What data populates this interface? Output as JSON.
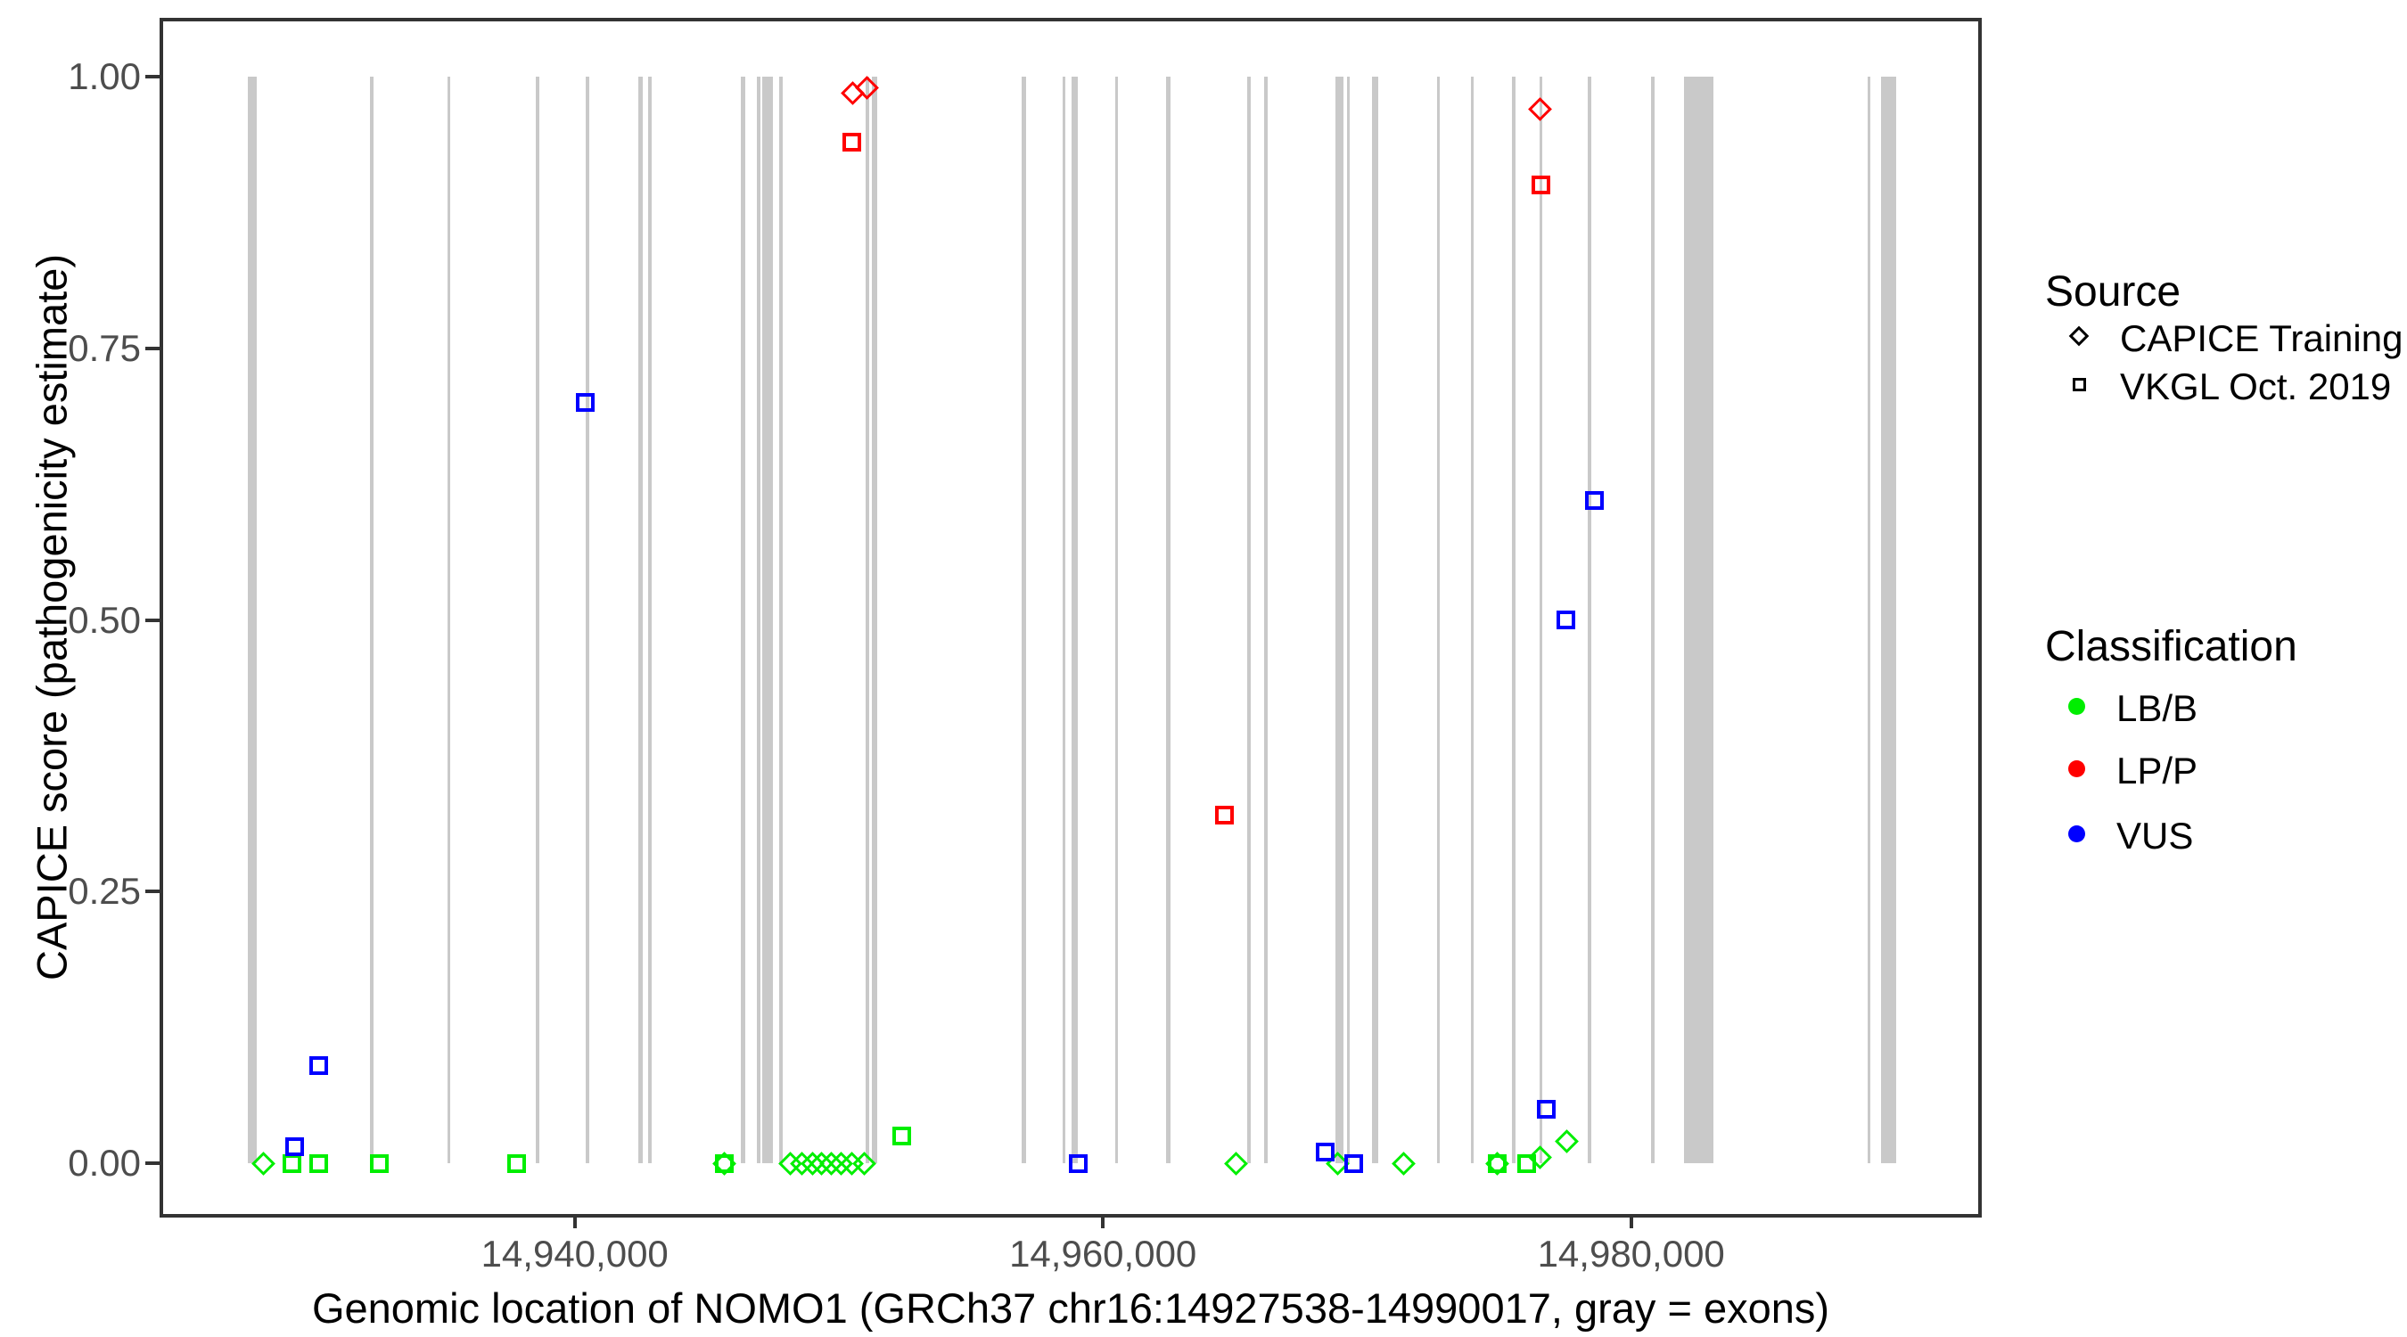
{
  "chart_data": {
    "type": "scatter",
    "xlabel": "Genomic location of NOMO1 (GRCh37 chr16:14927538-14990017, gray = exons)",
    "ylabel": "CAPICE score (pathogenicity estimate)",
    "xlim": [
      14924414,
      14993141
    ],
    "ylim": [
      0,
      1
    ],
    "grid": "off",
    "legend_position": "right",
    "x_ticks": [
      {
        "value": 14940000,
        "label": "14,940,000"
      },
      {
        "value": 14960000,
        "label": "14,960,000"
      },
      {
        "value": 14980000,
        "label": "14,980,000"
      }
    ],
    "y_ticks": [
      {
        "value": 0.0,
        "label": "0.00"
      },
      {
        "value": 0.25,
        "label": "0.25"
      },
      {
        "value": 0.5,
        "label": "0.50"
      },
      {
        "value": 0.75,
        "label": "0.75"
      },
      {
        "value": 1.0,
        "label": "1.00"
      }
    ],
    "exon_color": "#c9c9c9",
    "exons_note": "gray vertical bars = exons of NOMO1, drawn from score 0 to 1",
    "exons": [
      [
        14927620,
        14927960
      ],
      [
        14932250,
        14932380
      ],
      [
        14935180,
        14935260
      ],
      [
        14938525,
        14938660
      ],
      [
        14940415,
        14940550
      ],
      [
        14942405,
        14942575
      ],
      [
        14942780,
        14942915
      ],
      [
        14946290,
        14946460
      ],
      [
        14946895,
        14947030
      ],
      [
        14947100,
        14947505
      ],
      [
        14947740,
        14947860
      ],
      [
        14951015,
        14951150
      ],
      [
        14951250,
        14951455
      ],
      [
        14956920,
        14957090
      ],
      [
        14958475,
        14958575
      ],
      [
        14958810,
        14959045
      ],
      [
        14960465,
        14960565
      ],
      [
        14962390,
        14962560
      ],
      [
        14965460,
        14965595
      ],
      [
        14966100,
        14966235
      ],
      [
        14968805,
        14969110
      ],
      [
        14969245,
        14969345
      ],
      [
        14970195,
        14970430
      ],
      [
        14972655,
        14972755
      ],
      [
        14973935,
        14974035
      ],
      [
        14975490,
        14975625
      ],
      [
        14976530,
        14976650
      ],
      [
        14978355,
        14978490
      ],
      [
        14980755,
        14980890
      ],
      [
        14981990,
        14983105
      ],
      [
        14988950,
        14989050
      ],
      [
        14989460,
        14990017
      ]
    ],
    "classification_colors": {
      "LB/B": "#00ee00",
      "LP/P": "#ff0000",
      "VUS": "#0000ff"
    },
    "source_shapes": {
      "CAPICE Training": "diamond",
      "VKGL Oct. 2019": "square"
    },
    "points": [
      {
        "source": "CAPICE Training",
        "classification": "LB/B",
        "x": 14928200,
        "y": 0.0
      },
      {
        "source": "CAPICE Training",
        "classification": "LB/B",
        "x": 14945670,
        "y": 0.0
      },
      {
        "source": "CAPICE Training",
        "classification": "LB/B",
        "x": 14948150,
        "y": 0.0
      },
      {
        "source": "CAPICE Training",
        "classification": "LB/B",
        "x": 14948600,
        "y": 0.0
      },
      {
        "source": "CAPICE Training",
        "classification": "LB/B",
        "x": 14949000,
        "y": 0.0
      },
      {
        "source": "CAPICE Training",
        "classification": "LB/B",
        "x": 14949350,
        "y": 0.0
      },
      {
        "source": "CAPICE Training",
        "classification": "LB/B",
        "x": 14949700,
        "y": 0.0
      },
      {
        "source": "CAPICE Training",
        "classification": "LB/B",
        "x": 14950100,
        "y": 0.0
      },
      {
        "source": "CAPICE Training",
        "classification": "LB/B",
        "x": 14950500,
        "y": 0.0
      },
      {
        "source": "CAPICE Training",
        "classification": "LB/B",
        "x": 14950950,
        "y": 0.0
      },
      {
        "source": "CAPICE Training",
        "classification": "LP/P",
        "x": 14950520,
        "y": 0.985
      },
      {
        "source": "CAPICE Training",
        "classification": "LP/P",
        "x": 14951060,
        "y": 0.99
      },
      {
        "source": "CAPICE Training",
        "classification": "LB/B",
        "x": 14965040,
        "y": 0.0
      },
      {
        "source": "CAPICE Training",
        "classification": "LB/B",
        "x": 14968870,
        "y": 0.0
      },
      {
        "source": "CAPICE Training",
        "classification": "LB/B",
        "x": 14971370,
        "y": 0.0
      },
      {
        "source": "CAPICE Training",
        "classification": "LB/B",
        "x": 14974930,
        "y": 0.0
      },
      {
        "source": "CAPICE Training",
        "classification": "LP/P",
        "x": 14976550,
        "y": 0.97
      },
      {
        "source": "CAPICE Training",
        "classification": "LB/B",
        "x": 14976560,
        "y": 0.005
      },
      {
        "source": "CAPICE Training",
        "classification": "LB/B",
        "x": 14977560,
        "y": 0.02
      },
      {
        "source": "VKGL Oct. 2019",
        "classification": "LB/B",
        "x": 14929300,
        "y": 0.0
      },
      {
        "source": "VKGL Oct. 2019",
        "classification": "VUS",
        "x": 14929400,
        "y": 0.015
      },
      {
        "source": "VKGL Oct. 2019",
        "classification": "LB/B",
        "x": 14930300,
        "y": 0.0
      },
      {
        "source": "VKGL Oct. 2019",
        "classification": "VUS",
        "x": 14930300,
        "y": 0.09
      },
      {
        "source": "VKGL Oct. 2019",
        "classification": "LB/B",
        "x": 14932600,
        "y": 0.0
      },
      {
        "source": "VKGL Oct. 2019",
        "classification": "LB/B",
        "x": 14937800,
        "y": 0.0
      },
      {
        "source": "VKGL Oct. 2019",
        "classification": "VUS",
        "x": 14940400,
        "y": 0.7
      },
      {
        "source": "VKGL Oct. 2019",
        "classification": "LB/B",
        "x": 14945670,
        "y": 0.0
      },
      {
        "source": "VKGL Oct. 2019",
        "classification": "LP/P",
        "x": 14950480,
        "y": 0.94
      },
      {
        "source": "VKGL Oct. 2019",
        "classification": "LB/B",
        "x": 14952390,
        "y": 0.025
      },
      {
        "source": "VKGL Oct. 2019",
        "classification": "VUS",
        "x": 14959070,
        "y": 0.0
      },
      {
        "source": "VKGL Oct. 2019",
        "classification": "LP/P",
        "x": 14964590,
        "y": 0.32
      },
      {
        "source": "VKGL Oct. 2019",
        "classification": "VUS",
        "x": 14968400,
        "y": 0.01
      },
      {
        "source": "VKGL Oct. 2019",
        "classification": "VUS",
        "x": 14969510,
        "y": 0.0
      },
      {
        "source": "VKGL Oct. 2019",
        "classification": "LB/B",
        "x": 14974930,
        "y": 0.0
      },
      {
        "source": "VKGL Oct. 2019",
        "classification": "LB/B",
        "x": 14976030,
        "y": 0.0
      },
      {
        "source": "VKGL Oct. 2019",
        "classification": "VUS",
        "x": 14976790,
        "y": 0.05
      },
      {
        "source": "VKGL Oct. 2019",
        "classification": "LP/P",
        "x": 14976590,
        "y": 0.9
      },
      {
        "source": "VKGL Oct. 2019",
        "classification": "VUS",
        "x": 14977540,
        "y": 0.5
      },
      {
        "source": "VKGL Oct. 2019",
        "classification": "VUS",
        "x": 14978620,
        "y": 0.61
      }
    ]
  },
  "legend": {
    "source": {
      "title": "Source",
      "items": [
        {
          "label": "CAPICE Training",
          "shape": "diamond"
        },
        {
          "label": "VKGL Oct. 2019",
          "shape": "square"
        }
      ]
    },
    "classification": {
      "title": "Classification",
      "items": [
        {
          "label": "LB/B",
          "color": "#00ee00"
        },
        {
          "label": "LP/P",
          "color": "#ff0000"
        },
        {
          "label": "VUS",
          "color": "#0000ff"
        }
      ]
    }
  }
}
